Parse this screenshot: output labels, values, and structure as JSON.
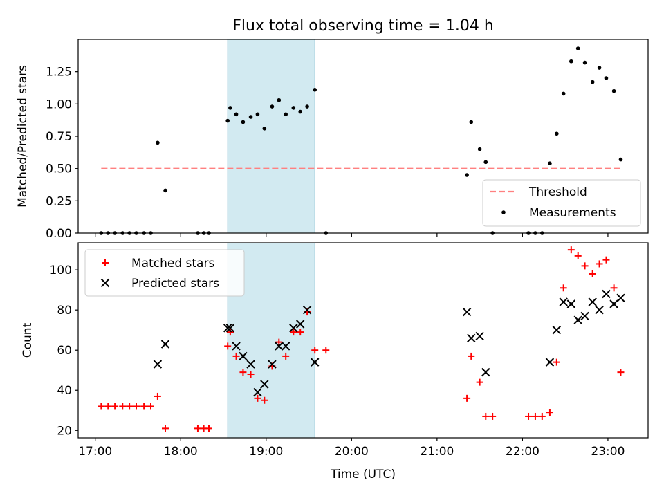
{
  "figure": {
    "title": "Flux total observing time = 1.04 h",
    "shaded_interval": {
      "start": 18.55,
      "end": 19.57,
      "color": "#add8e6"
    }
  },
  "chart_data": [
    {
      "type": "scatter",
      "ylabel": "Matched/Predicted stars",
      "xlabel": "",
      "xlim": [
        16.8,
        23.47
      ],
      "ylim": [
        0,
        1.5
      ],
      "grid": false,
      "legend_position": "lower-right",
      "x_ticks": [
        17,
        18,
        19,
        20,
        21,
        22,
        23
      ],
      "y_ticks": [
        {
          "value": 0,
          "label": "0.00"
        },
        {
          "value": 0.25,
          "label": "0.25"
        },
        {
          "value": 0.5,
          "label": "0.50"
        },
        {
          "value": 0.75,
          "label": "0.75"
        },
        {
          "value": 1.0,
          "label": "1.00"
        },
        {
          "value": 1.25,
          "label": "1.25"
        }
      ],
      "threshold": {
        "name": "Threshold",
        "value": 0.5,
        "x_range": [
          17.07,
          23.17
        ],
        "color": "#ff8080"
      },
      "series": [
        {
          "name": "Measurements",
          "color": "#000000",
          "marker": "dot",
          "points": [
            [
              17.07,
              0
            ],
            [
              17.15,
              0
            ],
            [
              17.23,
              0
            ],
            [
              17.32,
              0
            ],
            [
              17.4,
              0
            ],
            [
              17.48,
              0
            ],
            [
              17.57,
              0
            ],
            [
              17.65,
              0
            ],
            [
              17.73,
              0.7
            ],
            [
              17.82,
              0.33
            ],
            [
              18.2,
              0
            ],
            [
              18.27,
              0
            ],
            [
              18.33,
              0
            ],
            [
              18.55,
              0.87
            ],
            [
              18.58,
              0.97
            ],
            [
              18.65,
              0.92
            ],
            [
              18.73,
              0.86
            ],
            [
              18.82,
              0.9
            ],
            [
              18.9,
              0.92
            ],
            [
              18.98,
              0.81
            ],
            [
              19.07,
              0.98
            ],
            [
              19.15,
              1.03
            ],
            [
              19.23,
              0.92
            ],
            [
              19.32,
              0.97
            ],
            [
              19.4,
              0.94
            ],
            [
              19.48,
              0.98
            ],
            [
              19.57,
              1.11
            ],
            [
              19.7,
              0
            ],
            [
              21.35,
              0.45
            ],
            [
              21.4,
              0.86
            ],
            [
              21.5,
              0.65
            ],
            [
              21.57,
              0.55
            ],
            [
              21.65,
              0
            ],
            [
              22.07,
              0
            ],
            [
              22.15,
              0
            ],
            [
              22.23,
              0
            ],
            [
              22.32,
              0.54
            ],
            [
              22.4,
              0.77
            ],
            [
              22.48,
              1.08
            ],
            [
              22.57,
              1.33
            ],
            [
              22.65,
              1.43
            ],
            [
              22.73,
              1.32
            ],
            [
              22.82,
              1.17
            ],
            [
              22.9,
              1.28
            ],
            [
              22.98,
              1.2
            ],
            [
              23.07,
              1.1
            ],
            [
              23.15,
              0.57
            ]
          ]
        }
      ]
    },
    {
      "type": "scatter",
      "ylabel": "Count",
      "xlabel": "Time (UTC)",
      "xlim": [
        16.8,
        23.47
      ],
      "ylim": [
        16.3,
        113.5
      ],
      "grid": false,
      "legend_position": "upper-left",
      "x_ticks": [
        {
          "value": 17,
          "label": "17:00"
        },
        {
          "value": 18,
          "label": "18:00"
        },
        {
          "value": 19,
          "label": "19:00"
        },
        {
          "value": 20,
          "label": "20:00"
        },
        {
          "value": 21,
          "label": "21:00"
        },
        {
          "value": 22,
          "label": "22:00"
        },
        {
          "value": 23,
          "label": "23:00"
        }
      ],
      "y_ticks": [
        {
          "value": 20,
          "label": "20"
        },
        {
          "value": 40,
          "label": "40"
        },
        {
          "value": 60,
          "label": "60"
        },
        {
          "value": 80,
          "label": "80"
        },
        {
          "value": 100,
          "label": "100"
        }
      ],
      "series": [
        {
          "name": "Matched stars",
          "color": "#ff0000",
          "marker": "plus",
          "points": [
            [
              17.07,
              32
            ],
            [
              17.15,
              32
            ],
            [
              17.23,
              32
            ],
            [
              17.32,
              32
            ],
            [
              17.4,
              32
            ],
            [
              17.48,
              32
            ],
            [
              17.57,
              32
            ],
            [
              17.65,
              32
            ],
            [
              17.73,
              37
            ],
            [
              17.82,
              21
            ],
            [
              18.2,
              21
            ],
            [
              18.27,
              21
            ],
            [
              18.33,
              21
            ],
            [
              18.55,
              62
            ],
            [
              18.58,
              69
            ],
            [
              18.65,
              57
            ],
            [
              18.73,
              49
            ],
            [
              18.82,
              48
            ],
            [
              18.9,
              36
            ],
            [
              18.98,
              35
            ],
            [
              19.07,
              52
            ],
            [
              19.15,
              64
            ],
            [
              19.23,
              57
            ],
            [
              19.32,
              69
            ],
            [
              19.4,
              69
            ],
            [
              19.48,
              79
            ],
            [
              19.57,
              60
            ],
            [
              19.7,
              60
            ],
            [
              21.35,
              36
            ],
            [
              21.4,
              57
            ],
            [
              21.5,
              44
            ],
            [
              21.57,
              27
            ],
            [
              21.65,
              27
            ],
            [
              22.07,
              27
            ],
            [
              22.15,
              27
            ],
            [
              22.23,
              27
            ],
            [
              22.32,
              29
            ],
            [
              22.4,
              54
            ],
            [
              22.48,
              91
            ],
            [
              22.57,
              110
            ],
            [
              22.65,
              107
            ],
            [
              22.73,
              102
            ],
            [
              22.82,
              98
            ],
            [
              22.9,
              103
            ],
            [
              22.98,
              105
            ],
            [
              23.07,
              91
            ],
            [
              23.15,
              49
            ]
          ]
        },
        {
          "name": "Predicted stars",
          "color": "#000000",
          "marker": "x",
          "points": [
            [
              17.73,
              53
            ],
            [
              17.82,
              63
            ],
            [
              18.55,
              71
            ],
            [
              18.58,
              71
            ],
            [
              18.65,
              62
            ],
            [
              18.73,
              57
            ],
            [
              18.82,
              53
            ],
            [
              18.9,
              39
            ],
            [
              18.98,
              43
            ],
            [
              19.07,
              53
            ],
            [
              19.15,
              62
            ],
            [
              19.23,
              62
            ],
            [
              19.32,
              71
            ],
            [
              19.4,
              73
            ],
            [
              19.48,
              80
            ],
            [
              19.57,
              54
            ],
            [
              21.35,
              79
            ],
            [
              21.4,
              66
            ],
            [
              21.5,
              67
            ],
            [
              21.57,
              49
            ],
            [
              22.32,
              54
            ],
            [
              22.4,
              70
            ],
            [
              22.48,
              84
            ],
            [
              22.57,
              83
            ],
            [
              22.65,
              75
            ],
            [
              22.73,
              77
            ],
            [
              22.82,
              84
            ],
            [
              22.9,
              80
            ],
            [
              22.98,
              88
            ],
            [
              23.07,
              83
            ],
            [
              23.15,
              86
            ]
          ]
        }
      ]
    }
  ]
}
